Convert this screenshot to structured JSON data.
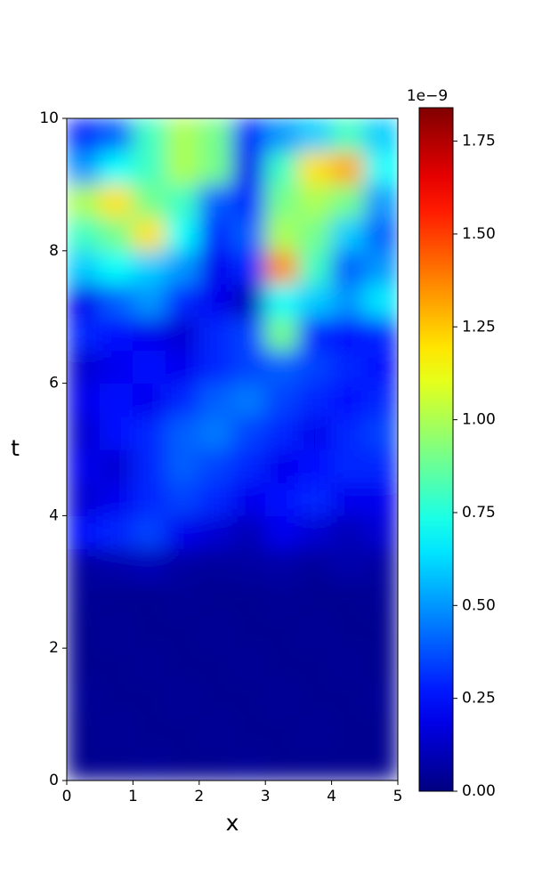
{
  "chart_data": {
    "type": "heatmap",
    "xlabel": "x",
    "ylabel": "t",
    "xlim": [
      0,
      5
    ],
    "ylim": [
      0,
      10
    ],
    "xticks": [
      0,
      1,
      2,
      3,
      4,
      5
    ],
    "yticks": [
      0,
      2,
      4,
      6,
      8,
      10
    ],
    "xbins": [
      0,
      0.5,
      1,
      1.5,
      2,
      2.5,
      3,
      3.5,
      4,
      4.5,
      5
    ],
    "ybins": [
      0,
      0.5,
      1,
      1.5,
      2,
      2.5,
      3,
      3.5,
      4,
      4.5,
      5,
      5.5,
      6,
      6.5,
      7,
      7.5,
      8,
      8.5,
      9,
      9.5,
      10
    ],
    "z": [
      [
        0.03,
        0.03,
        0.04,
        0.03,
        0.03,
        0.04,
        0.03,
        0.03,
        0.03,
        0.03
      ],
      [
        0.03,
        0.04,
        0.03,
        0.03,
        0.04,
        0.03,
        0.03,
        0.04,
        0.03,
        0.03
      ],
      [
        0.04,
        0.03,
        0.03,
        0.04,
        0.03,
        0.03,
        0.04,
        0.03,
        0.03,
        0.04
      ],
      [
        0.03,
        0.03,
        0.04,
        0.03,
        0.03,
        0.04,
        0.03,
        0.03,
        0.04,
        0.03
      ],
      [
        0.03,
        0.04,
        0.03,
        0.03,
        0.04,
        0.03,
        0.03,
        0.04,
        0.03,
        0.03
      ],
      [
        0.04,
        0.03,
        0.03,
        0.04,
        0.03,
        0.03,
        0.04,
        0.03,
        0.03,
        0.04
      ],
      [
        0.06,
        0.08,
        0.1,
        0.06,
        0.05,
        0.06,
        0.07,
        0.05,
        0.08,
        0.06
      ],
      [
        0.25,
        0.3,
        0.35,
        0.2,
        0.15,
        0.1,
        0.2,
        0.15,
        0.1,
        0.15
      ],
      [
        0.15,
        0.2,
        0.3,
        0.35,
        0.3,
        0.2,
        0.25,
        0.3,
        0.2,
        0.2
      ],
      [
        0.2,
        0.15,
        0.3,
        0.4,
        0.35,
        0.3,
        0.2,
        0.25,
        0.3,
        0.3
      ],
      [
        0.15,
        0.25,
        0.3,
        0.4,
        0.45,
        0.35,
        0.3,
        0.2,
        0.3,
        0.35
      ],
      [
        0.2,
        0.25,
        0.2,
        0.3,
        0.4,
        0.45,
        0.35,
        0.3,
        0.25,
        0.3
      ],
      [
        0.15,
        0.2,
        0.25,
        0.2,
        0.3,
        0.35,
        0.4,
        0.35,
        0.3,
        0.25
      ],
      [
        0.3,
        0.25,
        0.2,
        0.15,
        0.3,
        0.35,
        0.9,
        0.3,
        0.25,
        0.3
      ],
      [
        0.2,
        0.4,
        0.5,
        0.3,
        0.2,
        0.1,
        0.7,
        0.6,
        0.5,
        0.65
      ],
      [
        0.6,
        0.7,
        0.6,
        0.5,
        0.2,
        0.3,
        1.35,
        0.8,
        0.4,
        0.5
      ],
      [
        0.8,
        0.9,
        1.2,
        0.7,
        0.3,
        0.4,
        1.0,
        0.9,
        0.6,
        0.4
      ],
      [
        1.0,
        1.2,
        0.9,
        0.8,
        0.4,
        0.3,
        0.9,
        1.0,
        0.9,
        0.5
      ],
      [
        0.5,
        0.7,
        0.8,
        1.0,
        0.9,
        0.2,
        0.8,
        1.2,
        1.3,
        0.7
      ],
      [
        0.3,
        0.4,
        0.8,
        1.0,
        0.9,
        0.3,
        0.5,
        0.6,
        0.8,
        0.6
      ]
    ],
    "colormap": "jet",
    "zlim": [
      0,
      1.84
    ],
    "colorbar_offset": "1e−9",
    "zticks": [
      {
        "value": 0,
        "label": "0.00"
      },
      {
        "value": 0.25,
        "label": "0.25"
      },
      {
        "value": 0.5,
        "label": "0.50"
      },
      {
        "value": 0.75,
        "label": "0.75"
      },
      {
        "value": 1,
        "label": "1.00"
      },
      {
        "value": 1.25,
        "label": "1.25"
      },
      {
        "value": 1.5,
        "label": "1.50"
      },
      {
        "value": 1.75,
        "label": "1.75"
      }
    ]
  }
}
